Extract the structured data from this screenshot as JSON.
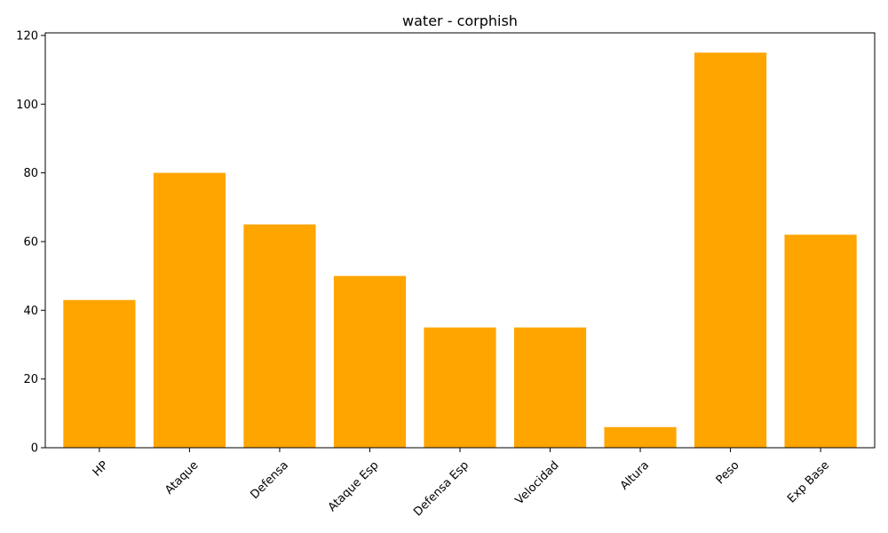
{
  "chart_data": {
    "type": "bar",
    "title": "water - corphish",
    "xlabel": "",
    "ylabel": "",
    "categories": [
      "HP",
      "Ataque",
      "Defensa",
      "Ataque Esp",
      "Defensa Esp",
      "Velocidad",
      "Altura",
      "Peso",
      "Exp Base"
    ],
    "values": [
      43,
      80,
      65,
      50,
      35,
      35,
      6,
      115,
      62
    ],
    "ylim": [
      0,
      120.75
    ],
    "yticks": [
      0,
      20,
      40,
      60,
      80,
      100,
      120
    ],
    "bar_color": "#ffa500",
    "grid": false,
    "legend": "none"
  }
}
